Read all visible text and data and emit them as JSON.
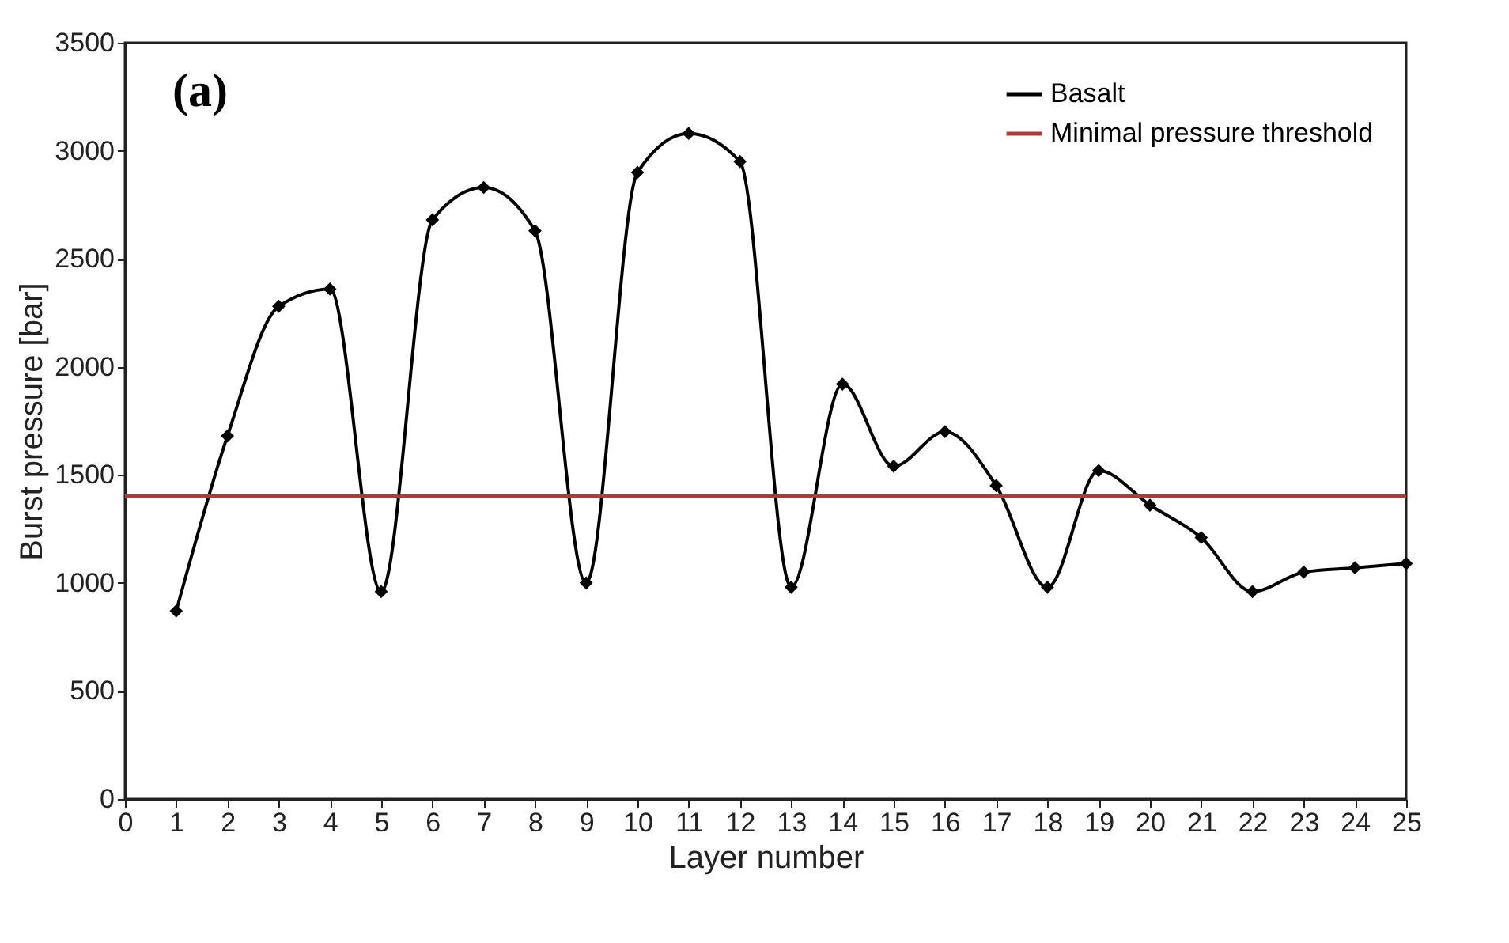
{
  "chart_data": {
    "type": "line",
    "xlabel": "Layer number",
    "ylabel": "Burst pressure [bar]",
    "x": [
      1,
      2,
      3,
      4,
      5,
      6,
      7,
      8,
      9,
      10,
      11,
      12,
      13,
      14,
      15,
      16,
      17,
      18,
      19,
      20,
      21,
      22,
      23,
      24,
      25
    ],
    "series": [
      {
        "name": "Basalt",
        "color": "#000000",
        "values": [
          870,
          1680,
          2280,
          2360,
          960,
          2680,
          2830,
          2630,
          1000,
          2900,
          3080,
          2950,
          980,
          1920,
          1540,
          1700,
          1450,
          980,
          1520,
          1360,
          1210,
          960,
          1050,
          1070,
          1090
        ]
      }
    ],
    "xlim": [
      0,
      25
    ],
    "xticks": [
      0,
      1,
      2,
      3,
      4,
      5,
      6,
      7,
      8,
      9,
      10,
      11,
      12,
      13,
      14,
      15,
      16,
      17,
      18,
      19,
      20,
      21,
      22,
      23,
      24,
      25
    ],
    "ylim": [
      0,
      3500
    ],
    "yticks": [
      0,
      500,
      1000,
      1500,
      2000,
      2500,
      3000,
      3500
    ],
    "ref_lines": [
      {
        "axis": "y",
        "value": 1400,
        "label": "Minimal pressure threshold",
        "color": "#b03a3a"
      }
    ],
    "annotations": [
      "(a)"
    ],
    "marker": "diamond",
    "grid": false,
    "legend": "top right"
  }
}
